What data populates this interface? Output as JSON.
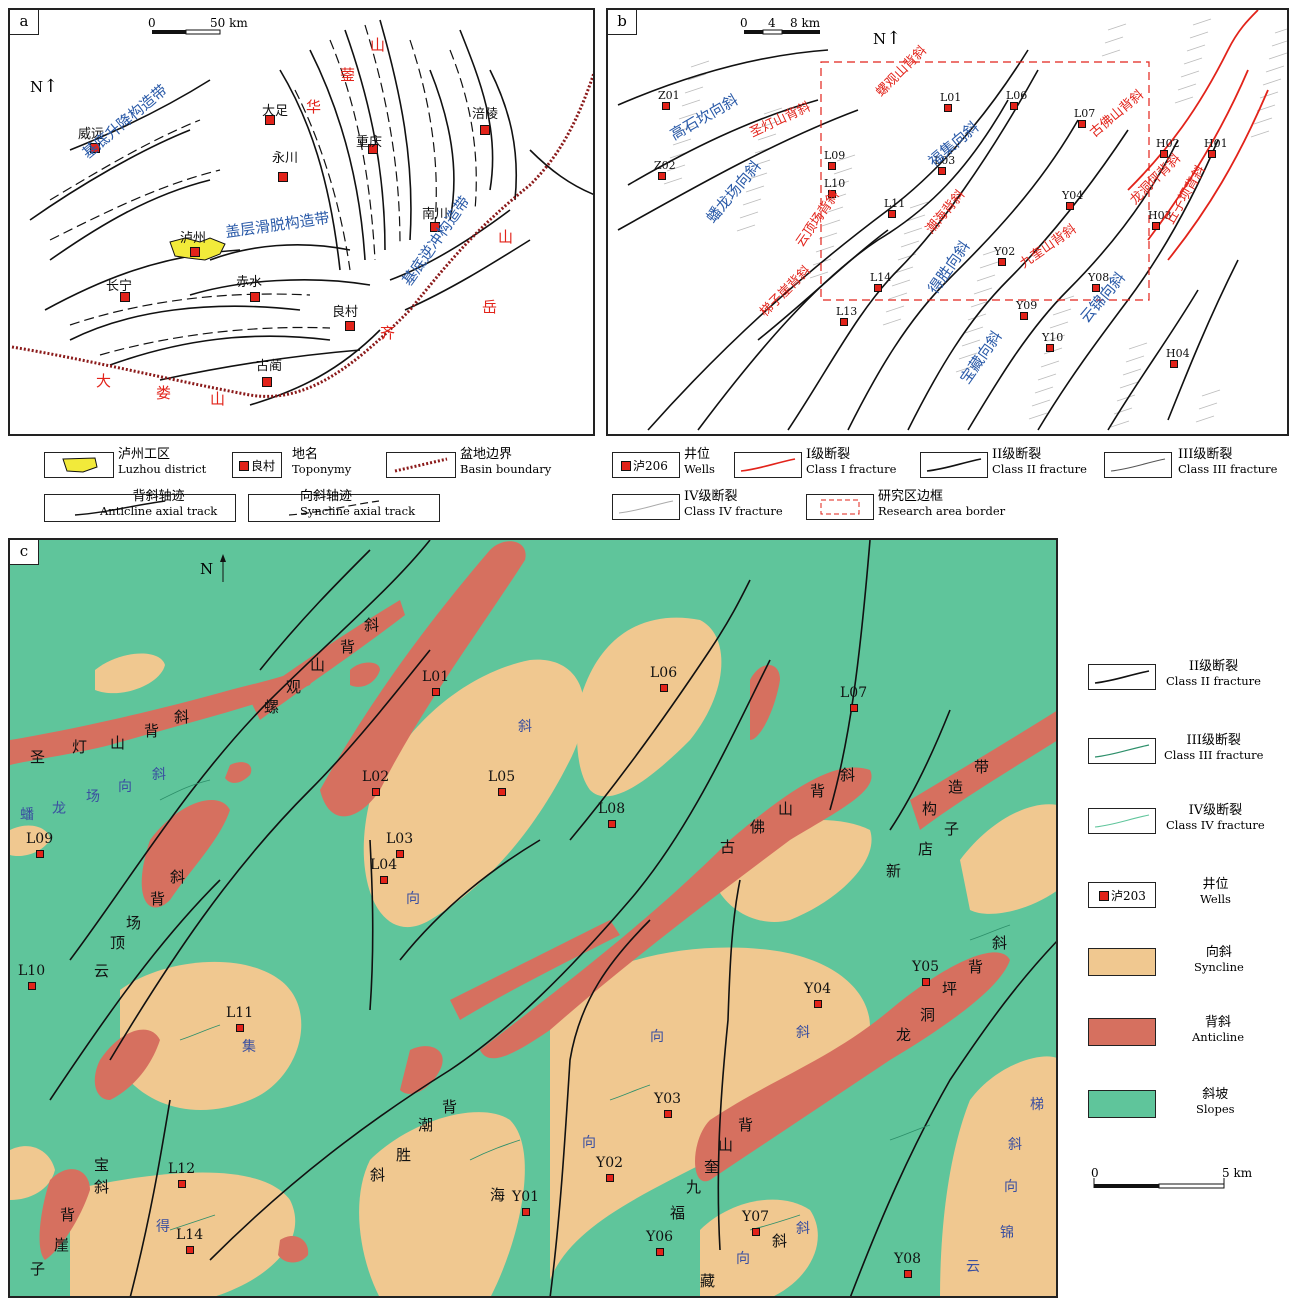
{
  "panel_a": {
    "label": "a",
    "north": "N",
    "scale": {
      "zero": "0",
      "end": "50 km"
    },
    "places": [
      {
        "name": "大足"
      },
      {
        "name": "威远"
      },
      {
        "name": "重庆"
      },
      {
        "name": "涪陵"
      },
      {
        "name": "永川"
      },
      {
        "name": "泸州"
      },
      {
        "name": "南川"
      },
      {
        "name": "长宁"
      },
      {
        "name": "赤水"
      },
      {
        "name": "良村"
      },
      {
        "name": "古蔺"
      }
    ],
    "zones": [
      {
        "text": "基底升降构造带"
      },
      {
        "text": "盖层滑脱构造带"
      },
      {
        "text": "基底逆冲构造带"
      }
    ],
    "mountains": [
      {
        "text": "山"
      },
      {
        "text": "蓥"
      },
      {
        "text": "华"
      },
      {
        "text": "山"
      },
      {
        "text": "岳"
      },
      {
        "text": "齐"
      },
      {
        "text": "大"
      },
      {
        "text": "娄"
      },
      {
        "text": "山"
      }
    ]
  },
  "panel_b": {
    "label": "b",
    "north": "N",
    "scale": {
      "zero": "0",
      "mid": "4",
      "end": "8 km"
    },
    "wells": [
      "Z01",
      "Z02",
      "L01",
      "L06",
      "L07",
      "L09",
      "L03",
      "L10",
      "L11",
      "H02",
      "H01",
      "Y04",
      "H03",
      "Y02",
      "L14",
      "Y08",
      "L13",
      "Y09",
      "Y10",
      "H04"
    ],
    "blue_labels": [
      "高石坎向斜",
      "蟠龙场向斜",
      "福集向斜",
      "得胜向斜",
      "云锦向斜",
      "宝藏向斜"
    ],
    "red_labels": [
      "圣灯山背斜",
      "螺观山背斜",
      "云顶场背斜",
      "梯子崖背斜",
      "潮海背斜",
      "九奎山背斜",
      "古佛山背斜",
      "龙洞坪背斜",
      "丘子坝背斜"
    ]
  },
  "legend_a": [
    {
      "zh": "泸州工区",
      "en": "Luzhou district"
    },
    {
      "zh": "地名",
      "en": "Toponymy",
      "sample": "良村"
    },
    {
      "zh": "盆地边界",
      "en": "Basin boundary"
    },
    {
      "zh": "背斜轴迹",
      "en": "Anticline axial track"
    },
    {
      "zh": "向斜轴迹",
      "en": "Syncline axial track"
    }
  ],
  "legend_b": [
    {
      "zh": "井位",
      "en": "Wells",
      "sample": "泸206"
    },
    {
      "zh": "I级断裂",
      "en": "Class I fracture"
    },
    {
      "zh": "II级断裂",
      "en": "Class II fracture"
    },
    {
      "zh": "III级断裂",
      "en": "Class III fracture"
    },
    {
      "zh": "IV级断裂",
      "en": "Class IV fracture"
    },
    {
      "zh": "研究区边框",
      "en": "Research area border"
    }
  ],
  "panel_c": {
    "label": "c",
    "north": "N",
    "wells": [
      "L01",
      "L02",
      "L05",
      "L03",
      "L04",
      "L06",
      "L07",
      "L08",
      "L09",
      "L10",
      "L11",
      "L12",
      "L14",
      "Y01",
      "Y02",
      "Y03",
      "Y04",
      "Y05",
      "Y06",
      "Y07",
      "Y08"
    ],
    "structure_chars": [
      "圣",
      "灯",
      "山",
      "背",
      "斜",
      "螺",
      "观",
      "山",
      "背",
      "斜",
      "蟠",
      "龙",
      "场",
      "向",
      "斜",
      "斜",
      "背",
      "场",
      "顶",
      "云",
      "集",
      "向",
      "斜",
      "古",
      "佛",
      "山",
      "背",
      "斜",
      "新",
      "店",
      "子",
      "构",
      "造",
      "带",
      "斜",
      "背",
      "坪",
      "洞",
      "龙",
      "向",
      "斜",
      "向",
      "胜",
      "潮",
      "背",
      "斜",
      "海",
      "得",
      "福",
      "九",
      "奎",
      "山",
      "背",
      "斜",
      "斜",
      "向",
      "藏",
      "宝",
      "斜",
      "背",
      "崖",
      "子",
      "梯",
      "斜",
      "向",
      "锦",
      "云"
    ]
  },
  "legend_c": [
    {
      "zh": "II级断裂",
      "en": "Class II fracture"
    },
    {
      "zh": "III级断裂",
      "en": "Class III fracture"
    },
    {
      "zh": "IV级断裂",
      "en": "Class IV fracture"
    },
    {
      "zh": "井位",
      "en": "Wells",
      "sample": "泸203"
    },
    {
      "zh": "向斜",
      "en": "Syncline"
    },
    {
      "zh": "背斜",
      "en": "Anticline"
    },
    {
      "zh": "斜坡",
      "en": "Slopes"
    }
  ],
  "scale_c": {
    "zero": "0",
    "end": "5 km"
  },
  "colors": {
    "syncline": "#f0c890",
    "anticline": "#d6705f",
    "slope": "#5fc59b",
    "red": "#e2231a",
    "blue": "#2a5aa8"
  }
}
